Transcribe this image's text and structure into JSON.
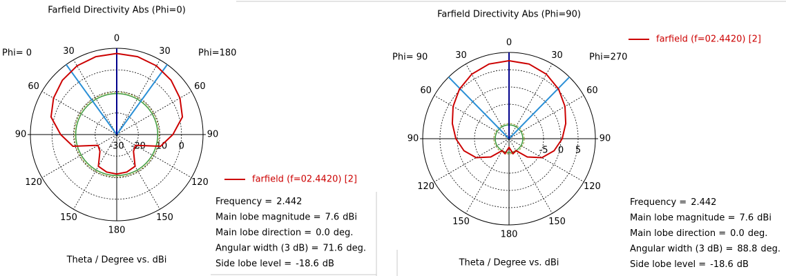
{
  "chart_data": [
    {
      "type": "polar",
      "title": "Farfield Directivity Abs (Phi=0)",
      "xlabel": "Theta / Degree vs. dBi",
      "left_label": "Phi=  0",
      "right_label": "Phi=180",
      "angle_ticks": [
        0,
        30,
        60,
        90,
        120,
        150,
        180,
        {
          "value": 210,
          "label": "150"
        },
        {
          "value": 240,
          "label": "120"
        },
        {
          "value": 270,
          "label": "90"
        },
        {
          "value": 300,
          "label": "60"
        },
        {
          "value": 330,
          "label": "30"
        }
      ],
      "rlim": [
        -30,
        10
      ],
      "rticks": [
        -30,
        -20,
        -10,
        0
      ],
      "main_lobe_color": "#00008b",
      "beam_color": "#2a8fd6",
      "side_lobe_color": "#3c9a3c",
      "series": [
        {
          "name": "farfield (f=02.4420) [2]",
          "color": "#cc0000",
          "x": [
            0,
            15,
            30,
            45,
            60,
            75,
            90,
            105,
            120,
            135,
            150,
            165,
            180,
            195,
            210,
            225,
            240,
            255,
            270,
            285,
            300,
            315,
            330,
            345
          ],
          "values": [
            7.6,
            7.4,
            6.8,
            5.6,
            3.8,
            1.5,
            -4,
            -9,
            -20,
            -19,
            -13,
            -12,
            -11.7,
            -12,
            -13,
            -19,
            -20,
            -9,
            -4,
            1.5,
            3.8,
            5.6,
            6.8,
            7.4
          ]
        }
      ],
      "info": [
        {
          "name": "Frequency =",
          "value": 2.442
        },
        {
          "name": "Main lobe magnitude =",
          "value": 7.6,
          "unit": "dBi"
        },
        {
          "name": "Main lobe direction =",
          "value": 0,
          "value_label": "0.0",
          "unit": "deg."
        },
        {
          "name": "Angular width (3 dB) =",
          "value": 71.6,
          "unit": "deg."
        },
        {
          "name": "Side lobe level =",
          "value": -18.6,
          "unit": "dB"
        }
      ]
    },
    {
      "type": "polar",
      "title": "Farfield Directivity Abs (Phi=90)",
      "xlabel": "Theta / Degree vs. dBi",
      "left_label": "Phi= 90",
      "right_label": "Phi=270",
      "angle_ticks": [
        0,
        30,
        60,
        90,
        120,
        150,
        180,
        {
          "value": 210,
          "label": "150"
        },
        {
          "value": 240,
          "label": "120"
        },
        {
          "value": 270,
          "label": "90"
        },
        {
          "value": 300,
          "label": "60"
        },
        {
          "value": 330,
          "label": "30"
        }
      ],
      "rlim": [
        -15,
        10
      ],
      "rticks": [
        -5,
        0,
        5
      ],
      "main_lobe_color": "#00008b",
      "beam_color": "#2a8fd6",
      "side_lobe_color": "#3c9a3c",
      "series": [
        {
          "name": "farfield (f=02.4420) [2]",
          "color": "#cc0000",
          "x": [
            0,
            15,
            30,
            45,
            60,
            75,
            90,
            105,
            120,
            135,
            150,
            165,
            180,
            195,
            210,
            225,
            240,
            255,
            270,
            285,
            300,
            315,
            330,
            345
          ],
          "values": [
            7.6,
            7.4,
            6.6,
            5.3,
            3.7,
            2,
            0.4,
            -1.5,
            -4,
            -7.5,
            -11,
            -10.5,
            -12.5,
            -10.5,
            -11,
            -7.5,
            -4,
            -1.5,
            0.4,
            2,
            3.7,
            5.3,
            6.6,
            7.4
          ]
        }
      ],
      "info": [
        {
          "name": "Frequency =",
          "value": 2.442
        },
        {
          "name": "Main lobe magnitude =",
          "value": 7.6,
          "unit": "dBi"
        },
        {
          "name": "Main lobe direction =",
          "value": 0,
          "value_label": "0.0",
          "unit": "deg."
        },
        {
          "name": "Angular width (3 dB) =",
          "value": 88.8,
          "unit": "deg."
        },
        {
          "name": "Side lobe level =",
          "value": -18.6,
          "unit": "dB"
        }
      ]
    }
  ]
}
